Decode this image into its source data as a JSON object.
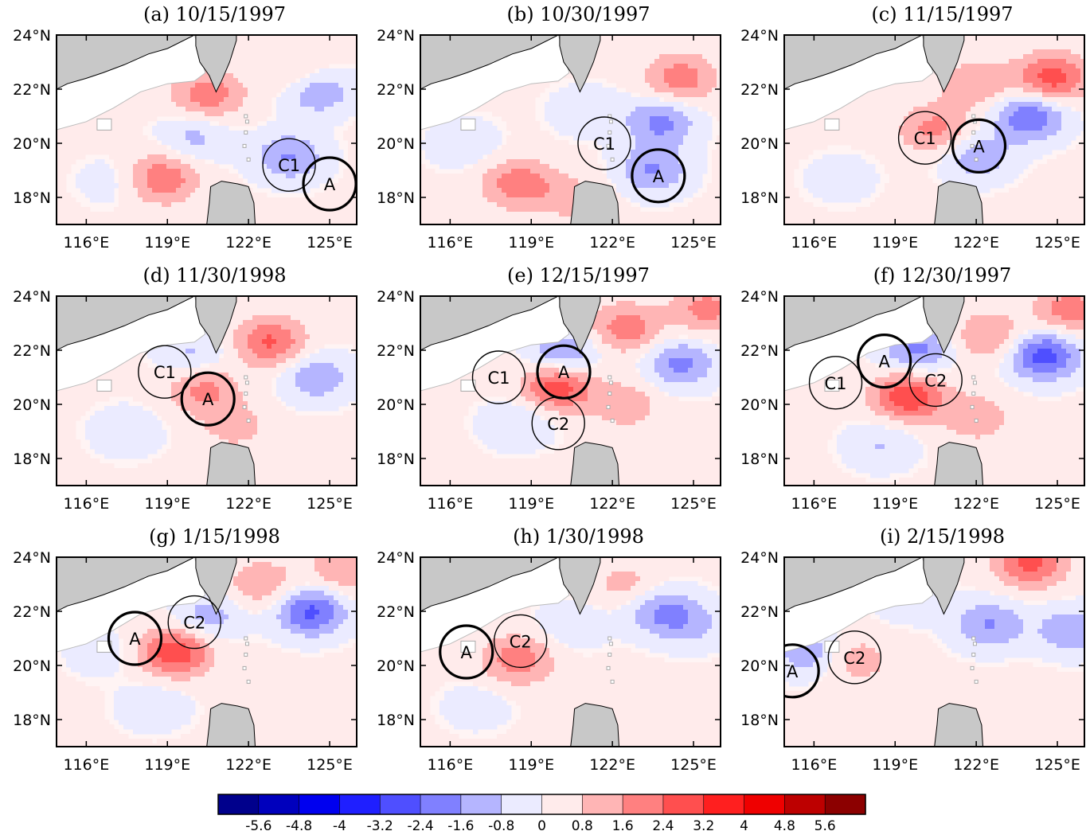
{
  "panels": [
    {
      "title": "(a)  10/15/1997",
      "eddies": [
        {
          "label": "C1",
          "lon": 123.5,
          "lat": 19.2,
          "bold": false
        },
        {
          "label": "A",
          "lon": 125.0,
          "lat": 18.5,
          "bold": true
        }
      ],
      "blobs": [
        {
          "lon": 120.5,
          "lat": 21.8,
          "v": 2.0
        },
        {
          "lon": 118.8,
          "lat": 18.7,
          "v": 2.2
        },
        {
          "lon": 124.5,
          "lat": 22.0,
          "v": -2.2
        },
        {
          "lon": 123.5,
          "lat": 19.5,
          "v": -1.8
        },
        {
          "lon": 120.0,
          "lat": 20.2,
          "v": -1.2
        },
        {
          "lon": 124.0,
          "lat": 22.5,
          "v": 1.4
        },
        {
          "lon": 117.0,
          "lat": 18.6,
          "v": -0.6
        }
      ]
    },
    {
      "title": "(b)  10/30/1997",
      "eddies": [
        {
          "label": "C1",
          "lon": 121.7,
          "lat": 20.0,
          "bold": false
        },
        {
          "label": "A",
          "lon": 123.7,
          "lat": 18.8,
          "bold": true
        }
      ],
      "blobs": [
        {
          "lon": 124.5,
          "lat": 22.4,
          "v": 2.0
        },
        {
          "lon": 118.5,
          "lat": 18.5,
          "v": 2.0
        },
        {
          "lon": 123.8,
          "lat": 20.8,
          "v": -2.0
        },
        {
          "lon": 123.5,
          "lat": 19.0,
          "v": -1.8
        },
        {
          "lon": 121.0,
          "lat": 21.2,
          "v": -0.8
        },
        {
          "lon": 116.5,
          "lat": 20.0,
          "v": -0.8
        },
        {
          "lon": 120.5,
          "lat": 18.0,
          "v": 1.0
        }
      ]
    },
    {
      "title": "(c)  11/15/1997",
      "eddies": [
        {
          "label": "C1",
          "lon": 120.1,
          "lat": 20.2,
          "bold": false
        },
        {
          "label": "A",
          "lon": 122.1,
          "lat": 19.9,
          "bold": true
        }
      ],
      "blobs": [
        {
          "lon": 124.8,
          "lat": 22.4,
          "v": 2.8
        },
        {
          "lon": 124.0,
          "lat": 21.0,
          "v": -2.6
        },
        {
          "lon": 120.5,
          "lat": 20.5,
          "v": 1.8
        },
        {
          "lon": 122.0,
          "lat": 19.5,
          "v": -1.6
        },
        {
          "lon": 117.0,
          "lat": 18.7,
          "v": -0.6
        },
        {
          "lon": 122.0,
          "lat": 22.2,
          "v": 1.4
        }
      ]
    },
    {
      "title": "(d)  11/30/1998",
      "eddies": [
        {
          "label": "C1",
          "lon": 118.9,
          "lat": 21.2,
          "bold": false
        },
        {
          "label": "A",
          "lon": 120.5,
          "lat": 20.2,
          "bold": true
        }
      ],
      "blobs": [
        {
          "lon": 122.8,
          "lat": 22.3,
          "v": 2.4
        },
        {
          "lon": 120.3,
          "lat": 20.6,
          "v": 1.8
        },
        {
          "lon": 124.5,
          "lat": 21.0,
          "v": -1.6
        },
        {
          "lon": 120.0,
          "lat": 21.8,
          "v": -1.2
        },
        {
          "lon": 117.5,
          "lat": 19.0,
          "v": -0.8
        },
        {
          "lon": 121.5,
          "lat": 19.2,
          "v": 1.0
        }
      ]
    },
    {
      "title": "(e)  12/15/1997",
      "eddies": [
        {
          "label": "C1",
          "lon": 117.8,
          "lat": 21.0,
          "bold": false
        },
        {
          "label": "A",
          "lon": 120.2,
          "lat": 21.2,
          "bold": true
        },
        {
          "label": "C2",
          "lon": 120.0,
          "lat": 19.3,
          "bold": false
        }
      ],
      "blobs": [
        {
          "lon": 120.0,
          "lat": 20.7,
          "v": 3.0
        },
        {
          "lon": 120.2,
          "lat": 21.8,
          "v": -2.0
        },
        {
          "lon": 124.5,
          "lat": 21.5,
          "v": -2.0
        },
        {
          "lon": 122.5,
          "lat": 22.8,
          "v": 2.0
        },
        {
          "lon": 125.5,
          "lat": 23.5,
          "v": 1.8
        },
        {
          "lon": 122.5,
          "lat": 20.0,
          "v": 1.2
        },
        {
          "lon": 118.5,
          "lat": 19.3,
          "v": -1.0
        }
      ]
    },
    {
      "title": "(f)  12/30/1997",
      "eddies": [
        {
          "label": "C1",
          "lon": 116.8,
          "lat": 20.8,
          "bold": false
        },
        {
          "label": "A",
          "lon": 118.6,
          "lat": 21.6,
          "bold": true
        },
        {
          "label": "C2",
          "lon": 120.5,
          "lat": 20.9,
          "bold": false
        }
      ],
      "blobs": [
        {
          "lon": 119.5,
          "lat": 20.3,
          "v": 3.0
        },
        {
          "lon": 119.8,
          "lat": 22.0,
          "v": -2.0
        },
        {
          "lon": 124.5,
          "lat": 21.8,
          "v": -3.0
        },
        {
          "lon": 122.5,
          "lat": 22.5,
          "v": 1.6
        },
        {
          "lon": 125.5,
          "lat": 23.5,
          "v": 2.0
        },
        {
          "lon": 118.5,
          "lat": 18.5,
          "v": -1.0
        },
        {
          "lon": 122.0,
          "lat": 19.5,
          "v": 1.2
        }
      ]
    },
    {
      "title": "(g)  1/15/1998",
      "eddies": [
        {
          "label": "A",
          "lon": 117.8,
          "lat": 21.0,
          "bold": true
        },
        {
          "label": "C2",
          "lon": 120.0,
          "lat": 21.6,
          "bold": false
        }
      ],
      "blobs": [
        {
          "lon": 119.3,
          "lat": 20.5,
          "v": 3.0
        },
        {
          "lon": 120.5,
          "lat": 21.8,
          "v": -1.4
        },
        {
          "lon": 124.3,
          "lat": 22.0,
          "v": -2.8
        },
        {
          "lon": 122.5,
          "lat": 23.0,
          "v": 1.4
        },
        {
          "lon": 125.5,
          "lat": 23.5,
          "v": 1.4
        },
        {
          "lon": 118.5,
          "lat": 18.5,
          "v": -0.8
        },
        {
          "lon": 116.5,
          "lat": 20.5,
          "v": -0.6
        }
      ]
    },
    {
      "title": "(h)  1/30/1998",
      "eddies": [
        {
          "label": "A",
          "lon": 116.6,
          "lat": 20.5,
          "bold": true
        },
        {
          "label": "C2",
          "lon": 118.6,
          "lat": 20.9,
          "bold": false
        }
      ],
      "blobs": [
        {
          "lon": 118.5,
          "lat": 20.2,
          "v": 2.0
        },
        {
          "lon": 123.8,
          "lat": 22.0,
          "v": -1.8
        },
        {
          "lon": 120.5,
          "lat": 21.5,
          "v": -0.8
        },
        {
          "lon": 125.0,
          "lat": 21.5,
          "v": -1.0
        },
        {
          "lon": 122.5,
          "lat": 23.0,
          "v": 1.0
        },
        {
          "lon": 117.0,
          "lat": 18.5,
          "v": -0.6
        }
      ]
    },
    {
      "title": "(i)  2/15/1998",
      "eddies": [
        {
          "label": "A",
          "lon": 115.2,
          "lat": 19.8,
          "bold": true
        },
        {
          "label": "C2",
          "lon": 117.5,
          "lat": 20.3,
          "bold": false
        }
      ],
      "blobs": [
        {
          "lon": 124.0,
          "lat": 23.8,
          "v": 2.6
        },
        {
          "lon": 122.5,
          "lat": 21.5,
          "v": -1.8
        },
        {
          "lon": 115.8,
          "lat": 20.5,
          "v": -1.6
        },
        {
          "lon": 125.5,
          "lat": 21.3,
          "v": -1.6
        },
        {
          "lon": 117.5,
          "lat": 20.2,
          "v": 1.2
        },
        {
          "lon": 119.5,
          "lat": 22.5,
          "v": -0.8
        }
      ]
    }
  ],
  "x_ticks": [
    "116°E",
    "119°E",
    "122°E",
    "125°E"
  ],
  "x_tick_values": [
    116,
    119,
    122,
    125
  ],
  "y_ticks": [
    "24°N",
    "22°N",
    "20°N",
    "18°N"
  ],
  "y_tick_values": [
    24,
    22,
    20,
    18
  ],
  "lon_range": [
    114.9,
    126.0
  ],
  "lat_range": [
    17.0,
    24.0
  ],
  "colorbar": {
    "labels": [
      "-5.6",
      "-4.8",
      "-4",
      "-3.2",
      "-2.4",
      "-1.6",
      "-0.8",
      "0",
      "0.8",
      "1.6",
      "2.4",
      "3.2",
      "4",
      "4.8",
      "5.6"
    ],
    "label_values": [
      -5.6,
      -4.8,
      -4.0,
      -3.2,
      -2.4,
      -1.6,
      -0.8,
      0,
      0.8,
      1.6,
      2.4,
      3.2,
      4.0,
      4.8,
      5.6
    ],
    "bins": 16,
    "step": 0.8
  },
  "colors": {
    "land": "#c8c8c8",
    "negative_max": "#00008c",
    "positive_max": "#8c0000",
    "zero": "#ffffff"
  }
}
